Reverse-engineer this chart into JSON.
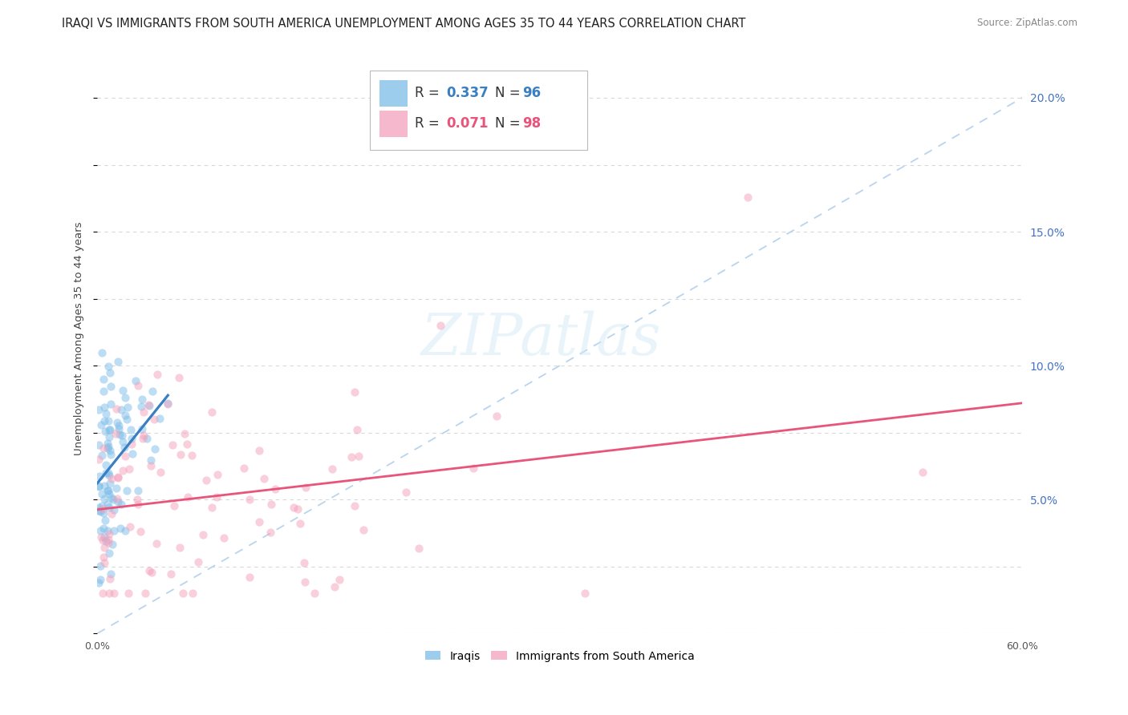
{
  "title": "IRAQI VS IMMIGRANTS FROM SOUTH AMERICA UNEMPLOYMENT AMONG AGES 35 TO 44 YEARS CORRELATION CHART",
  "source": "Source: ZipAtlas.com",
  "ylabel": "Unemployment Among Ages 35 to 44 years",
  "xlim": [
    0.0,
    0.6
  ],
  "ylim": [
    0.0,
    0.22
  ],
  "xticklabels_show": [
    "0.0%",
    "60.0%"
  ],
  "xticks_show": [
    0.0,
    0.6
  ],
  "yticks_right": [
    0.05,
    0.1,
    0.15,
    0.2
  ],
  "yticklabels_right": [
    "5.0%",
    "10.0%",
    "15.0%",
    "20.0%"
  ],
  "iraqis_R": 0.337,
  "iraqis_N": 96,
  "sa_R": 0.071,
  "sa_N": 98,
  "iraqis_color": "#7bbde8",
  "sa_color": "#f4a0bb",
  "iraqis_line_color": "#3a7fc1",
  "sa_line_color": "#e8547a",
  "diagonal_color": "#b8d4ee",
  "background_color": "#ffffff",
  "grid_color": "#d8d8d8",
  "title_fontsize": 10.5,
  "label_fontsize": 9.5,
  "tick_fontsize": 9,
  "legend_fontsize": 12,
  "right_tick_color": "#4472c4"
}
